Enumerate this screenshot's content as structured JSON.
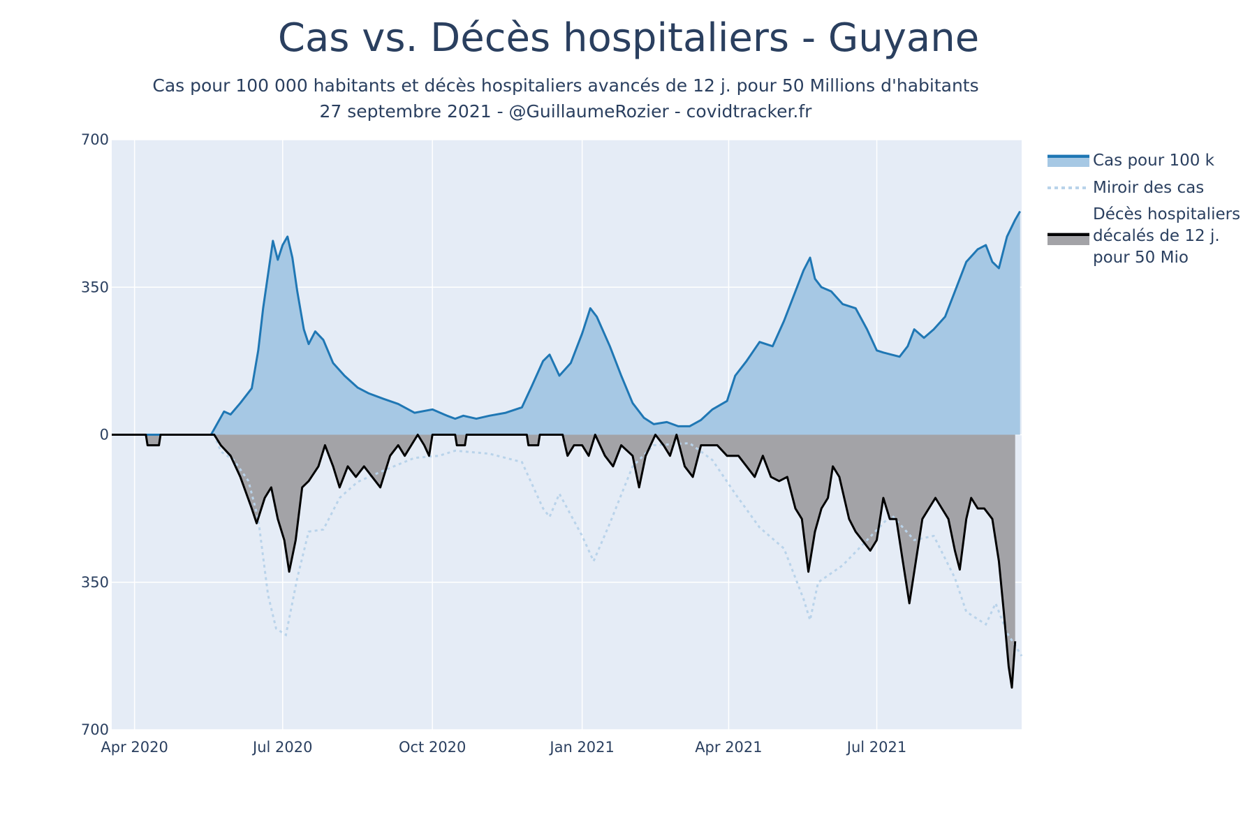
{
  "title": "Cas vs. Décès hospitaliers - Guyane",
  "subtitle_line1": "Cas pour 100 000 habitants et décès hospitaliers avancés de 12 j. pour 50 Millions d'habitants",
  "subtitle_line2": "27 septembre 2021 - @GuillaumeRozier - covidtracker.fr",
  "legend": {
    "cases": "Cas pour 100 k",
    "mirror": "Miroir des cas",
    "deaths_l1": "Décès hospitaliers",
    "deaths_l2": "décalés de 12 j.",
    "deaths_l3": "pour 50 Mio"
  },
  "colors": {
    "plot_bg": "#e5ecf6",
    "cases_line": "#1f77b4",
    "cases_fill": "#a6c8e4",
    "mirror_line": "#b9d3ea",
    "deaths_line": "#000000",
    "deaths_fill": "#a3a3a7",
    "grid": "#ffffff",
    "text": "#2a3f5f"
  },
  "chart_data": {
    "type": "area",
    "title": "Cas vs. Décès hospitaliers - Guyane",
    "x_start": "2020-03-18",
    "x_end": "2021-09-28",
    "x_ticks": [
      {
        "date": "2020-04-01",
        "label": "Apr 2020"
      },
      {
        "date": "2020-07-01",
        "label": "Jul 2020"
      },
      {
        "date": "2020-10-01",
        "label": "Oct 2020"
      },
      {
        "date": "2021-01-01",
        "label": "Jan 2021"
      },
      {
        "date": "2021-04-01",
        "label": "Apr 2021"
      },
      {
        "date": "2021-07-01",
        "label": "Jul 2021"
      }
    ],
    "y_range": [
      -700,
      700
    ],
    "y_ticks": [
      {
        "value": 700,
        "label": "700"
      },
      {
        "value": 350,
        "label": "350"
      },
      {
        "value": 0,
        "label": "0"
      },
      {
        "value": -350,
        "label": "350"
      },
      {
        "value": -700,
        "label": "700"
      }
    ],
    "series": [
      {
        "name": "Cas pour 100 k",
        "style": "solid line with filled area above zero",
        "points": [
          [
            "2020-03-18",
            0
          ],
          [
            "2020-05-18",
            0
          ],
          [
            "2020-05-26",
            55
          ],
          [
            "2020-05-30",
            48
          ],
          [
            "2020-06-05",
            75
          ],
          [
            "2020-06-12",
            110
          ],
          [
            "2020-06-16",
            200
          ],
          [
            "2020-06-19",
            300
          ],
          [
            "2020-06-22",
            380
          ],
          [
            "2020-06-25",
            460
          ],
          [
            "2020-06-28",
            415
          ],
          [
            "2020-07-01",
            450
          ],
          [
            "2020-07-04",
            470
          ],
          [
            "2020-07-07",
            420
          ],
          [
            "2020-07-10",
            340
          ],
          [
            "2020-07-14",
            250
          ],
          [
            "2020-07-17",
            215
          ],
          [
            "2020-07-21",
            245
          ],
          [
            "2020-07-26",
            225
          ],
          [
            "2020-08-01",
            170
          ],
          [
            "2020-08-08",
            140
          ],
          [
            "2020-08-16",
            112
          ],
          [
            "2020-08-23",
            98
          ],
          [
            "2020-09-01",
            85
          ],
          [
            "2020-09-10",
            73
          ],
          [
            "2020-09-20",
            52
          ],
          [
            "2020-10-01",
            60
          ],
          [
            "2020-10-10",
            45
          ],
          [
            "2020-10-15",
            38
          ],
          [
            "2020-10-20",
            45
          ],
          [
            "2020-10-28",
            38
          ],
          [
            "2020-11-05",
            45
          ],
          [
            "2020-11-15",
            52
          ],
          [
            "2020-11-25",
            65
          ],
          [
            "2020-12-01",
            115
          ],
          [
            "2020-12-08",
            175
          ],
          [
            "2020-12-12",
            190
          ],
          [
            "2020-12-18",
            140
          ],
          [
            "2020-12-25",
            170
          ],
          [
            "2021-01-01",
            240
          ],
          [
            "2021-01-06",
            300
          ],
          [
            "2021-01-10",
            280
          ],
          [
            "2021-01-18",
            210
          ],
          [
            "2021-01-25",
            140
          ],
          [
            "2021-02-01",
            75
          ],
          [
            "2021-02-08",
            40
          ],
          [
            "2021-02-14",
            25
          ],
          [
            "2021-02-22",
            30
          ],
          [
            "2021-03-01",
            20
          ],
          [
            "2021-03-08",
            20
          ],
          [
            "2021-03-15",
            35
          ],
          [
            "2021-03-22",
            60
          ],
          [
            "2021-03-31",
            80
          ],
          [
            "2021-04-05",
            140
          ],
          [
            "2021-04-12",
            175
          ],
          [
            "2021-04-20",
            220
          ],
          [
            "2021-04-28",
            210
          ],
          [
            "2021-05-05",
            270
          ],
          [
            "2021-05-12",
            340
          ],
          [
            "2021-05-17",
            390
          ],
          [
            "2021-05-21",
            420
          ],
          [
            "2021-05-24",
            370
          ],
          [
            "2021-05-28",
            350
          ],
          [
            "2021-06-03",
            340
          ],
          [
            "2021-06-10",
            310
          ],
          [
            "2021-06-18",
            300
          ],
          [
            "2021-06-25",
            250
          ],
          [
            "2021-07-01",
            200
          ],
          [
            "2021-07-05",
            195
          ],
          [
            "2021-07-10",
            190
          ],
          [
            "2021-07-15",
            185
          ],
          [
            "2021-07-20",
            210
          ],
          [
            "2021-07-24",
            250
          ],
          [
            "2021-07-30",
            230
          ],
          [
            "2021-08-05",
            250
          ],
          [
            "2021-08-12",
            280
          ],
          [
            "2021-08-18",
            340
          ],
          [
            "2021-08-25",
            410
          ],
          [
            "2021-09-01",
            440
          ],
          [
            "2021-09-06",
            450
          ],
          [
            "2021-09-10",
            410
          ],
          [
            "2021-09-14",
            395
          ],
          [
            "2021-09-19",
            470
          ],
          [
            "2021-09-24",
            510
          ],
          [
            "2021-09-27",
            530
          ]
        ]
      },
      {
        "name": "Miroir des cas",
        "style": "dotted line (negative mirror of cases)",
        "points": [
          [
            "2020-05-20",
            0
          ],
          [
            "2020-05-24",
            -40
          ],
          [
            "2020-06-01",
            -60
          ],
          [
            "2020-06-10",
            -110
          ],
          [
            "2020-06-16",
            -200
          ],
          [
            "2020-06-22",
            -380
          ],
          [
            "2020-06-27",
            -460
          ],
          [
            "2020-07-03",
            -475
          ],
          [
            "2020-07-10",
            -340
          ],
          [
            "2020-07-17",
            -230
          ],
          [
            "2020-07-26",
            -225
          ],
          [
            "2020-08-05",
            -150
          ],
          [
            "2020-08-16",
            -112
          ],
          [
            "2020-09-01",
            -85
          ],
          [
            "2020-09-20",
            -55
          ],
          [
            "2020-10-05",
            -50
          ],
          [
            "2020-10-15",
            -38
          ],
          [
            "2020-11-05",
            -45
          ],
          [
            "2020-11-25",
            -65
          ],
          [
            "2020-12-08",
            -175
          ],
          [
            "2020-12-12",
            -195
          ],
          [
            "2020-12-18",
            -140
          ],
          [
            "2021-01-01",
            -240
          ],
          [
            "2021-01-08",
            -300
          ],
          [
            "2021-01-18",
            -210
          ],
          [
            "2021-02-01",
            -75
          ],
          [
            "2021-02-14",
            -25
          ],
          [
            "2021-03-08",
            -20
          ],
          [
            "2021-03-22",
            -60
          ],
          [
            "2021-04-05",
            -140
          ],
          [
            "2021-04-20",
            -220
          ],
          [
            "2021-05-05",
            -270
          ],
          [
            "2021-05-17",
            -390
          ],
          [
            "2021-05-21",
            -440
          ],
          [
            "2021-05-26",
            -350
          ],
          [
            "2021-06-10",
            -310
          ],
          [
            "2021-06-25",
            -250
          ],
          [
            "2021-07-10",
            -190
          ],
          [
            "2021-07-24",
            -250
          ],
          [
            "2021-08-05",
            -240
          ],
          [
            "2021-08-18",
            -340
          ],
          [
            "2021-08-25",
            -420
          ],
          [
            "2021-09-06",
            -450
          ],
          [
            "2021-09-12",
            -400
          ],
          [
            "2021-09-19",
            -470
          ],
          [
            "2021-09-24",
            -500
          ],
          [
            "2021-09-28",
            -525
          ]
        ]
      },
      {
        "name": "Décès hospitaliers décalés de 12 j. pour 50 Mio",
        "style": "solid line with filled area below zero",
        "points": [
          [
            "2020-03-18",
            0
          ],
          [
            "2020-04-08",
            0
          ],
          [
            "2020-04-09",
            -25
          ],
          [
            "2020-04-16",
            -25
          ],
          [
            "2020-04-17",
            0
          ],
          [
            "2020-05-20",
            0
          ],
          [
            "2020-05-24",
            -25
          ],
          [
            "2020-05-30",
            -50
          ],
          [
            "2020-06-05",
            -100
          ],
          [
            "2020-06-12",
            -175
          ],
          [
            "2020-06-15",
            -210
          ],
          [
            "2020-06-20",
            -150
          ],
          [
            "2020-06-24",
            -125
          ],
          [
            "2020-06-28",
            -200
          ],
          [
            "2020-07-02",
            -250
          ],
          [
            "2020-07-05",
            -325
          ],
          [
            "2020-07-09",
            -250
          ],
          [
            "2020-07-13",
            -125
          ],
          [
            "2020-07-17",
            -110
          ],
          [
            "2020-07-23",
            -75
          ],
          [
            "2020-07-27",
            -25
          ],
          [
            "2020-08-01",
            -75
          ],
          [
            "2020-08-05",
            -125
          ],
          [
            "2020-08-10",
            -75
          ],
          [
            "2020-08-15",
            -100
          ],
          [
            "2020-08-20",
            -75
          ],
          [
            "2020-08-25",
            -100
          ],
          [
            "2020-08-30",
            -125
          ],
          [
            "2020-09-05",
            -50
          ],
          [
            "2020-09-10",
            -25
          ],
          [
            "2020-09-14",
            -50
          ],
          [
            "2020-09-18",
            -25
          ],
          [
            "2020-09-22",
            0
          ],
          [
            "2020-09-26",
            -25
          ],
          [
            "2020-09-29",
            -50
          ],
          [
            "2020-10-01",
            0
          ],
          [
            "2020-10-15",
            0
          ],
          [
            "2020-10-16",
            -25
          ],
          [
            "2020-10-21",
            -25
          ],
          [
            "2020-10-22",
            0
          ],
          [
            "2020-11-28",
            0
          ],
          [
            "2020-11-29",
            -25
          ],
          [
            "2020-12-05",
            -25
          ],
          [
            "2020-12-06",
            0
          ],
          [
            "2020-12-20",
            0
          ],
          [
            "2020-12-23",
            -50
          ],
          [
            "2020-12-27",
            -25
          ],
          [
            "2021-01-01",
            -25
          ],
          [
            "2021-01-05",
            -50
          ],
          [
            "2021-01-09",
            0
          ],
          [
            "2021-01-15",
            -50
          ],
          [
            "2021-01-20",
            -75
          ],
          [
            "2021-01-25",
            -25
          ],
          [
            "2021-02-01",
            -50
          ],
          [
            "2021-02-05",
            -125
          ],
          [
            "2021-02-09",
            -50
          ],
          [
            "2021-02-15",
            0
          ],
          [
            "2021-02-20",
            -25
          ],
          [
            "2021-02-24",
            -50
          ],
          [
            "2021-02-28",
            0
          ],
          [
            "2021-03-05",
            -75
          ],
          [
            "2021-03-10",
            -100
          ],
          [
            "2021-03-15",
            -25
          ],
          [
            "2021-03-25",
            -25
          ],
          [
            "2021-03-31",
            -50
          ],
          [
            "2021-04-07",
            -50
          ],
          [
            "2021-04-12",
            -75
          ],
          [
            "2021-04-17",
            -100
          ],
          [
            "2021-04-22",
            -50
          ],
          [
            "2021-04-27",
            -100
          ],
          [
            "2021-05-02",
            -110
          ],
          [
            "2021-05-07",
            -100
          ],
          [
            "2021-05-12",
            -175
          ],
          [
            "2021-05-16",
            -200
          ],
          [
            "2021-05-20",
            -325
          ],
          [
            "2021-05-24",
            -230
          ],
          [
            "2021-05-28",
            -175
          ],
          [
            "2021-06-01",
            -150
          ],
          [
            "2021-06-04",
            -75
          ],
          [
            "2021-06-08",
            -100
          ],
          [
            "2021-06-14",
            -200
          ],
          [
            "2021-06-18",
            -230
          ],
          [
            "2021-06-22",
            -250
          ],
          [
            "2021-06-27",
            -275
          ],
          [
            "2021-07-01",
            -250
          ],
          [
            "2021-07-05",
            -150
          ],
          [
            "2021-07-09",
            -200
          ],
          [
            "2021-07-13",
            -200
          ],
          [
            "2021-07-17",
            -300
          ],
          [
            "2021-07-21",
            -400
          ],
          [
            "2021-07-25",
            -300
          ],
          [
            "2021-07-29",
            -200
          ],
          [
            "2021-08-02",
            -175
          ],
          [
            "2021-08-06",
            -150
          ],
          [
            "2021-08-10",
            -175
          ],
          [
            "2021-08-14",
            -200
          ],
          [
            "2021-08-18",
            -275
          ],
          [
            "2021-08-21",
            -320
          ],
          [
            "2021-08-25",
            -200
          ],
          [
            "2021-08-28",
            -150
          ],
          [
            "2021-09-01",
            -175
          ],
          [
            "2021-09-05",
            -175
          ],
          [
            "2021-09-10",
            -200
          ],
          [
            "2021-09-14",
            -300
          ],
          [
            "2021-09-17",
            -420
          ],
          [
            "2021-09-20",
            -550
          ],
          [
            "2021-09-22",
            -600
          ],
          [
            "2021-09-24",
            -490
          ]
        ]
      }
    ]
  }
}
